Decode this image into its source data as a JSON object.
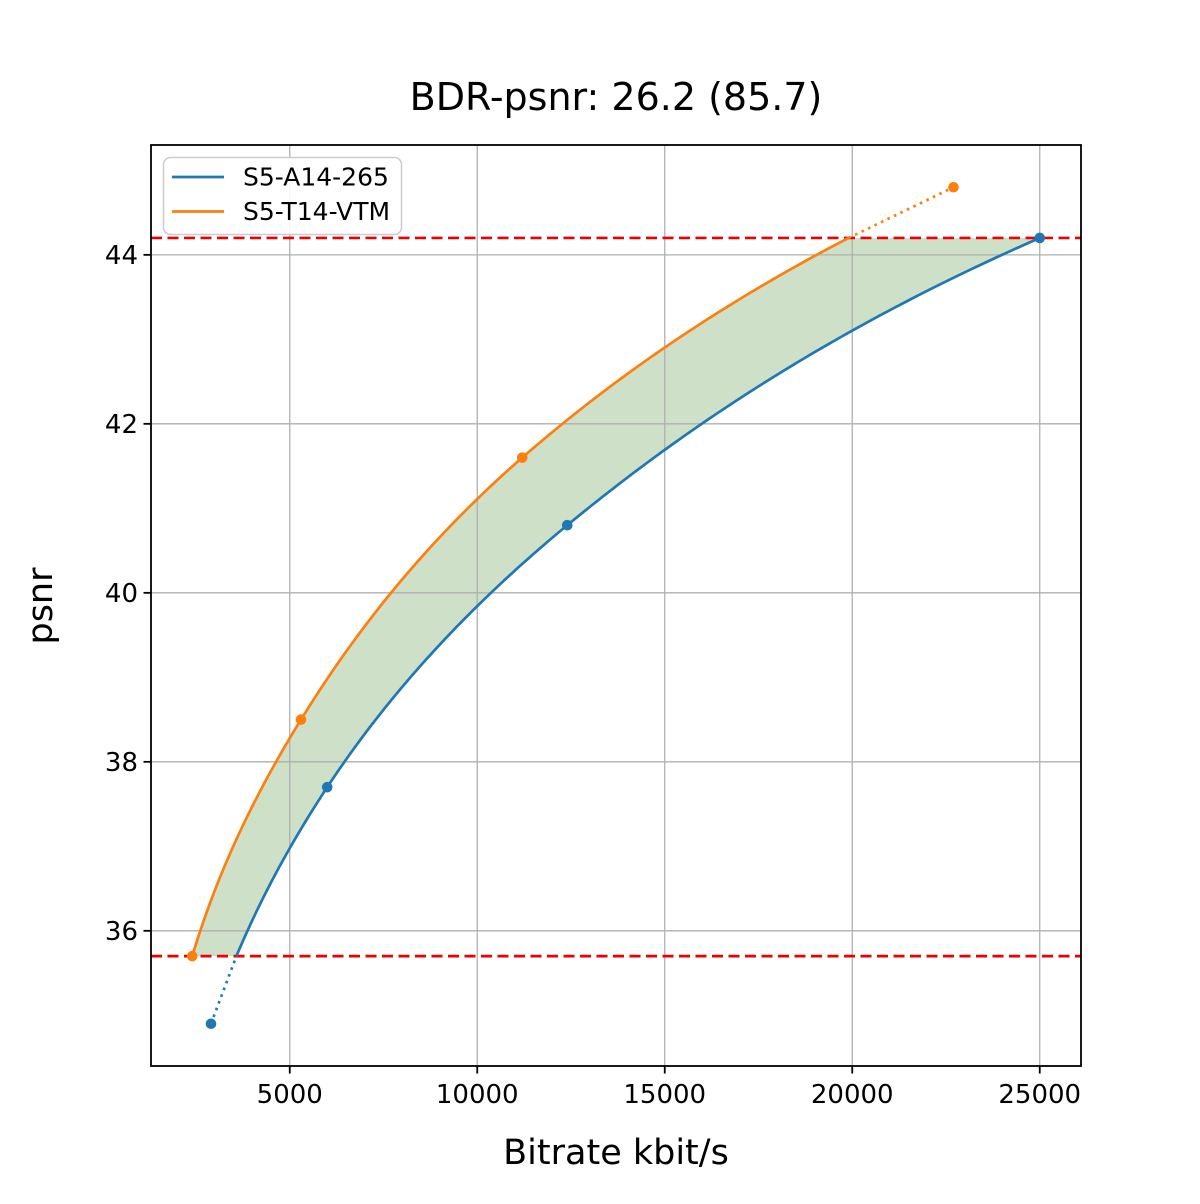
{
  "chart_data": {
    "type": "line",
    "title": "BDR-psnr: 26.2 (85.7)",
    "xlabel": "Bitrate kbit/s",
    "ylabel": "psnr",
    "xlim": [
      1300,
      26100
    ],
    "ylim": [
      34.4,
      45.3
    ],
    "x_ticks": [
      5000,
      10000,
      15000,
      20000,
      25000
    ],
    "y_ticks": [
      36,
      38,
      40,
      42,
      44
    ],
    "grid": true,
    "grid_color": "#b0b0b0",
    "background_color": "#ffffff",
    "spine_color": "#000000",
    "legend": {
      "position": "upper left",
      "entries": [
        "S5-A14-265",
        "S5-T14-VTM"
      ]
    },
    "series": [
      {
        "name": "S5-A14-265",
        "color": "#1f77b4",
        "marker": "circle",
        "line_style": "solid-within-overlap",
        "points": [
          [
            2900,
            34.9
          ],
          [
            6000,
            37.7
          ],
          [
            12400,
            40.8
          ],
          [
            25000,
            44.2
          ]
        ]
      },
      {
        "name": "S5-T14-VTM",
        "color": "#ff7f0e",
        "marker": "circle",
        "line_style": "solid-within-overlap",
        "points": [
          [
            2400,
            35.7
          ],
          [
            5300,
            38.5
          ],
          [
            11200,
            41.6
          ],
          [
            22700,
            44.8
          ]
        ]
      }
    ],
    "reference_lines": [
      {
        "value": 35.7,
        "color": "#ee0000",
        "style": "dashed",
        "orientation": "horizontal"
      },
      {
        "value": 44.2,
        "color": "#ee0000",
        "style": "dashed",
        "orientation": "horizontal"
      }
    ],
    "shaded_region": {
      "between": [
        "S5-T14-VTM",
        "S5-A14-265"
      ],
      "psnr_range": [
        35.7,
        44.2
      ],
      "color": "#76a662",
      "opacity": 0.35
    }
  }
}
